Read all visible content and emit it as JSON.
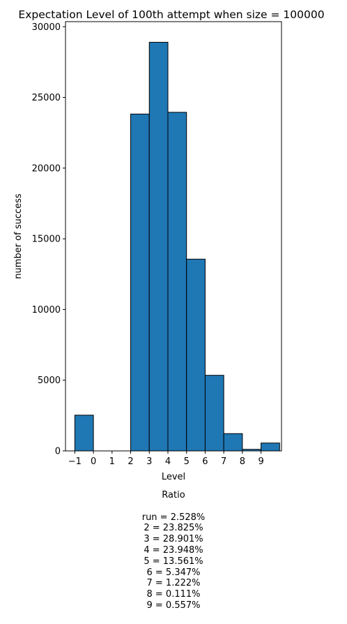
{
  "chart_data": {
    "type": "bar",
    "title": "Expectation Level of 100th attempt when size = 100000",
    "xlabel": "Level",
    "ylabel": "number of success",
    "x_tick_labels": [
      "−1",
      "0",
      "1",
      "2",
      "3",
      "4",
      "5",
      "6",
      "7",
      "8",
      "9"
    ],
    "x_tick_values": [
      -1,
      0,
      1,
      2,
      3,
      4,
      5,
      6,
      7,
      8,
      9
    ],
    "y_tick_labels": [
      "0",
      "5000",
      "10000",
      "15000",
      "20000",
      "25000",
      "30000"
    ],
    "y_tick_values": [
      0,
      5000,
      10000,
      15000,
      20000,
      25000,
      30000
    ],
    "xlim": [
      -1.5,
      10.1
    ],
    "ylim": [
      0,
      30360
    ],
    "grid": false,
    "bin_edges": [
      -1,
      0,
      1,
      2,
      3,
      4,
      5,
      6,
      7,
      8,
      9,
      10
    ],
    "values": [
      2528,
      0,
      0,
      23825,
      28901,
      23948,
      13561,
      5347,
      1222,
      111,
      557
    ],
    "bar_color": "#1f77b4",
    "edge_color": "#000000"
  },
  "ratio": {
    "title": "Ratio",
    "lines": [
      "run = 2.528%",
      "2 = 23.825%",
      "3 = 28.901%",
      "4 = 23.948%",
      "5 = 13.561%",
      "6 = 5.347%",
      "7 = 1.222%",
      "8 = 0.111%",
      "9 = 0.557%"
    ]
  }
}
